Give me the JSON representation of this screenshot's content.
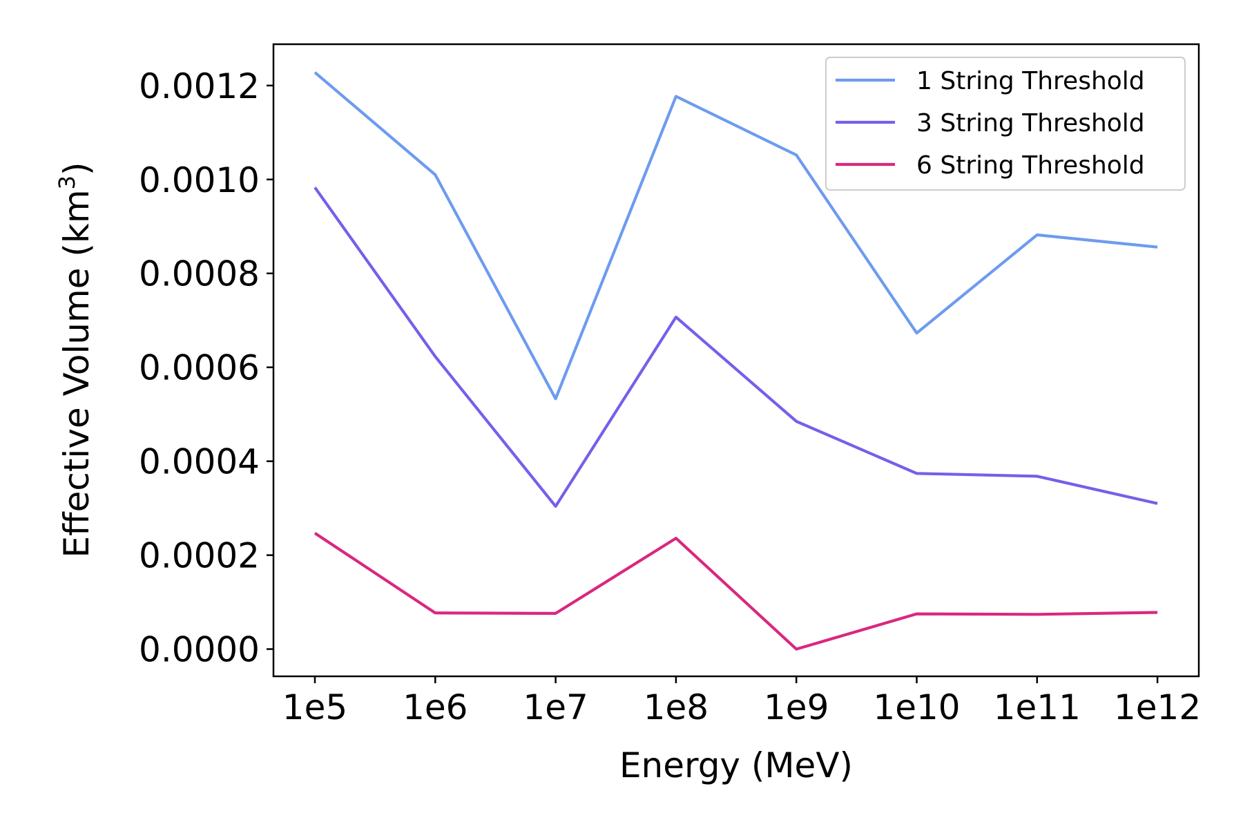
{
  "chart_data": {
    "type": "line",
    "title": "",
    "xlabel": "Energy (MeV)",
    "ylabel_main": "Effective Volume (km",
    "ylabel_sup": "3",
    "ylabel_close": ")",
    "categories": [
      "1e5",
      "1e6",
      "1e7",
      "1e8",
      "1e9",
      "1e10",
      "1e11",
      "1e12"
    ],
    "yticks": [
      {
        "value": 0.0,
        "label": "0.0000"
      },
      {
        "value": 0.0002,
        "label": "0.0002"
      },
      {
        "value": 0.0004,
        "label": "0.0004"
      },
      {
        "value": 0.0006,
        "label": "0.0006"
      },
      {
        "value": 0.0008,
        "label": "0.0008"
      },
      {
        "value": 0.001,
        "label": "0.0010"
      },
      {
        "value": 0.0012,
        "label": "0.0012"
      }
    ],
    "ylim": [
      -5.8e-05,
      0.001288
    ],
    "grid": false,
    "legend_position": "top-right",
    "series": [
      {
        "name": "1 String Threshold",
        "color": "#6d9bef",
        "values": [
          0.001228,
          0.00101,
          0.000533,
          0.001177,
          0.001052,
          0.000673,
          0.000882,
          0.000856
        ]
      },
      {
        "name": "3 String Threshold",
        "color": "#7460ea",
        "values": [
          0.000983,
          0.000623,
          0.000304,
          0.000707,
          0.000485,
          0.000374,
          0.000368,
          0.00031
        ]
      },
      {
        "name": "6 String Threshold",
        "color": "#d9287f",
        "values": [
          0.000247,
          7.7e-05,
          7.6e-05,
          0.000236,
          0.0,
          7.5e-05,
          7.4e-05,
          7.8e-05
        ]
      }
    ]
  }
}
